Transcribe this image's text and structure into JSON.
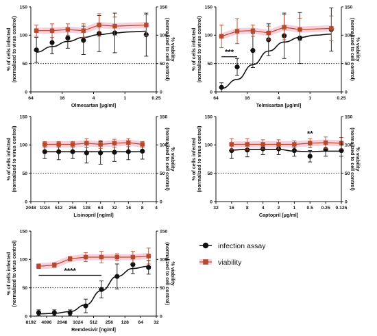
{
  "chart_data": [
    {
      "type": "scatter",
      "xlabel": "Olmesartan [µg/ml]",
      "ylabel_left": [
        "% of cells infected",
        "(normalized to virus control)"
      ],
      "ylabel_right": [
        "% viability",
        "(normalized to cell control)"
      ],
      "x_scale": "log2-reversed",
      "xlim": [
        64,
        0.25
      ],
      "ylim": [
        0,
        150
      ],
      "x_tick_labels": [
        {
          "value": 64,
          "label": "64"
        },
        {
          "value": 16,
          "label": "16"
        },
        {
          "value": 4,
          "label": "4"
        },
        {
          "value": 1,
          "label": "1"
        },
        {
          "value": 0.25,
          "label": "0.25"
        }
      ],
      "y_ticks": [
        0,
        50,
        100,
        150
      ],
      "reference_line": 50,
      "series": [
        {
          "name": "infection assay",
          "x": [
            50,
            25,
            12.5,
            6.25,
            3.125,
            1.5625,
            0.39
          ],
          "y": [
            74,
            87,
            95,
            91,
            103,
            104,
            101
          ],
          "err": [
            22,
            20,
            18,
            25,
            32,
            35,
            38
          ],
          "fit": [
            70,
            80,
            89,
            96,
            101,
            104,
            106,
            107
          ]
        },
        {
          "name": "viability",
          "x": [
            50,
            25,
            12.5,
            6.25,
            3.125,
            1.5625,
            0.39
          ],
          "y": [
            108,
            108,
            110,
            108,
            118,
            116,
            118
          ],
          "err": [
            10,
            12,
            10,
            12,
            20,
            16,
            18
          ]
        }
      ],
      "annotations": []
    },
    {
      "type": "scatter",
      "xlabel": "Telmisartan [µg/ml]",
      "ylabel_left": [
        "% of cells infected",
        "(normalized to virus control)"
      ],
      "ylabel_right": [
        "% viability",
        "(normalized to cell control)"
      ],
      "x_scale": "log2-reversed",
      "xlim": [
        64,
        0.25
      ],
      "ylim": [
        0,
        150
      ],
      "x_tick_labels": [
        {
          "value": 64,
          "label": "64"
        },
        {
          "value": 16,
          "label": "16"
        },
        {
          "value": 4,
          "label": "4"
        },
        {
          "value": 1,
          "label": "1"
        },
        {
          "value": 0.25,
          "label": "0.25"
        }
      ],
      "y_ticks": [
        0,
        50,
        100,
        150
      ],
      "reference_line": 50,
      "series": [
        {
          "name": "infection assay",
          "x": [
            50,
            25,
            12.5,
            6.25,
            3.125,
            1.5625,
            0.39
          ],
          "y": [
            8,
            44,
            73,
            92,
            99,
            95,
            110
          ],
          "err": [
            8,
            15,
            30,
            28,
            40,
            45,
            38
          ],
          "fit": [
            6,
            22,
            48,
            72,
            88,
            96,
            100,
            102
          ]
        },
        {
          "name": "viability",
          "x": [
            50,
            25,
            12.5,
            6.25,
            3.125,
            1.5625,
            0.39
          ],
          "y": [
            98,
            107,
            108,
            104,
            114,
            110,
            112
          ],
          "err": [
            20,
            22,
            10,
            12,
            22,
            20,
            22
          ]
        }
      ],
      "annotations": [
        {
          "text": "***",
          "x1": 50,
          "x2": 25,
          "y": 62
        }
      ]
    },
    {
      "type": "scatter",
      "xlabel": "Lisinopril [ng/ml]",
      "ylabel_left": [
        "% of cells infected",
        "(normalized to virus control)"
      ],
      "ylabel_right": [
        "% viability",
        "(normalized to cell control)"
      ],
      "x_scale": "log2-reversed",
      "xlim": [
        2048,
        4
      ],
      "ylim": [
        0,
        150
      ],
      "x_tick_labels": [
        {
          "value": 2048,
          "label": "2048"
        },
        {
          "value": 1024,
          "label": "1024"
        },
        {
          "value": 512,
          "label": "512"
        },
        {
          "value": 256,
          "label": "256"
        },
        {
          "value": 128,
          "label": "128"
        },
        {
          "value": 64,
          "label": "64"
        },
        {
          "value": 32,
          "label": "32"
        },
        {
          "value": 16,
          "label": "16"
        },
        {
          "value": 8,
          "label": "8"
        },
        {
          "value": 4,
          "label": "4"
        }
      ],
      "y_ticks": [
        0,
        50,
        100,
        150
      ],
      "reference_line": 50,
      "series": [
        {
          "name": "infection assay",
          "x": [
            1024,
            512,
            256,
            128,
            64,
            32,
            16,
            8
          ],
          "y": [
            88,
            88,
            88,
            86,
            86,
            87,
            88,
            89
          ],
          "err": [
            12,
            14,
            12,
            18,
            20,
            16,
            14,
            14
          ],
          "fit": [
            88,
            88,
            88,
            88,
            88,
            88,
            88,
            88
          ]
        },
        {
          "name": "viability",
          "x": [
            1024,
            512,
            256,
            128,
            64,
            32,
            16,
            8
          ],
          "y": [
            101,
            101,
            101,
            103,
            101,
            103,
            104,
            101
          ],
          "err": [
            5,
            5,
            5,
            8,
            7,
            7,
            7,
            5
          ]
        }
      ],
      "annotations": []
    },
    {
      "type": "scatter",
      "xlabel": "Captopril [µg/ml]",
      "ylabel_left": [
        "% of cells infected",
        "(normalized to virus control)"
      ],
      "ylabel_right": [
        "% viability",
        "(normalized to cell control)"
      ],
      "x_scale": "log2-reversed",
      "xlim": [
        32,
        0.125
      ],
      "ylim": [
        0,
        150
      ],
      "x_tick_labels": [
        {
          "value": 32,
          "label": "32"
        },
        {
          "value": 16,
          "label": "16"
        },
        {
          "value": 8,
          "label": "8"
        },
        {
          "value": 4,
          "label": "4"
        },
        {
          "value": 2,
          "label": "2"
        },
        {
          "value": 1,
          "label": "1"
        },
        {
          "value": 0.5,
          "label": "0.5"
        },
        {
          "value": 0.25,
          "label": "0.25"
        },
        {
          "value": 0.125,
          "label": "0.125"
        }
      ],
      "y_ticks": [
        0,
        50,
        100,
        150
      ],
      "reference_line": 50,
      "series": [
        {
          "name": "infection assay",
          "x": [
            16,
            8,
            4,
            2,
            1,
            0.5,
            0.25,
            0.125
          ],
          "y": [
            90,
            91,
            93,
            93,
            90,
            80,
            92,
            90
          ],
          "err": [
            14,
            12,
            10,
            10,
            10,
            10,
            12,
            10
          ],
          "fit": [
            91,
            92,
            92,
            92,
            89,
            88,
            89,
            89
          ]
        },
        {
          "name": "viability",
          "x": [
            16,
            8,
            4,
            2,
            1,
            0.5,
            0.25,
            0.125
          ],
          "y": [
            101,
            101,
            101,
            101,
            101,
            103,
            104,
            103
          ],
          "err": [
            10,
            10,
            8,
            8,
            6,
            8,
            10,
            10
          ]
        }
      ],
      "annotations": [
        {
          "text": "**",
          "x1": 0.5,
          "x2": 0.5,
          "y": 113
        }
      ]
    },
    {
      "type": "scatter",
      "xlabel": "Remdesivir [ng/ml]",
      "ylabel_left": [
        "% of cells infected",
        "(normalized to virus control)"
      ],
      "ylabel_right": [
        "% viability",
        "(normalized to cell control)"
      ],
      "x_scale": "log2-reversed",
      "xlim": [
        8192,
        32
      ],
      "ylim": [
        0,
        150
      ],
      "x_tick_labels": [
        {
          "value": 8192,
          "label": "8192"
        },
        {
          "value": 4096,
          "label": "4096"
        },
        {
          "value": 2048,
          "label": "2048"
        },
        {
          "value": 1024,
          "label": "1024"
        },
        {
          "value": 512,
          "label": "512"
        },
        {
          "value": 256,
          "label": "256"
        },
        {
          "value": 128,
          "label": "128"
        },
        {
          "value": 64,
          "label": "64"
        },
        {
          "value": 32,
          "label": "32"
        }
      ],
      "y_ticks": [
        0,
        50,
        100,
        150
      ],
      "reference_line": 50,
      "series": [
        {
          "name": "infection assay",
          "x": [
            5793,
            2896,
            1448,
            724,
            362,
            181,
            90,
            45
          ],
          "y": [
            6,
            6,
            6,
            18,
            47,
            70,
            91,
            86
          ],
          "err": [
            5,
            5,
            5,
            12,
            15,
            22,
            16,
            12
          ],
          "fit": [
            4,
            5,
            8,
            20,
            45,
            70,
            84,
            88
          ]
        },
        {
          "name": "viability",
          "x": [
            5793,
            2896,
            1448,
            724,
            362,
            181,
            90,
            45
          ],
          "y": [
            88,
            90,
            101,
            104,
            104,
            104,
            104,
            106
          ],
          "err": [
            4,
            4,
            4,
            8,
            10,
            6,
            10,
            14
          ]
        }
      ],
      "annotations": [
        {
          "text": "****",
          "x1": 5793,
          "x2": 362,
          "y": 72
        }
      ]
    }
  ],
  "legend": {
    "items": [
      {
        "label": "infection assay",
        "marker": "circle",
        "color": "#111111"
      },
      {
        "label": "viability",
        "marker": "square",
        "color": "#b5492c"
      }
    ]
  },
  "colors": {
    "infection": "#111111",
    "viability": "#b5492c",
    "viability_band": "#f3a9c0",
    "reference_line": "#222222"
  }
}
